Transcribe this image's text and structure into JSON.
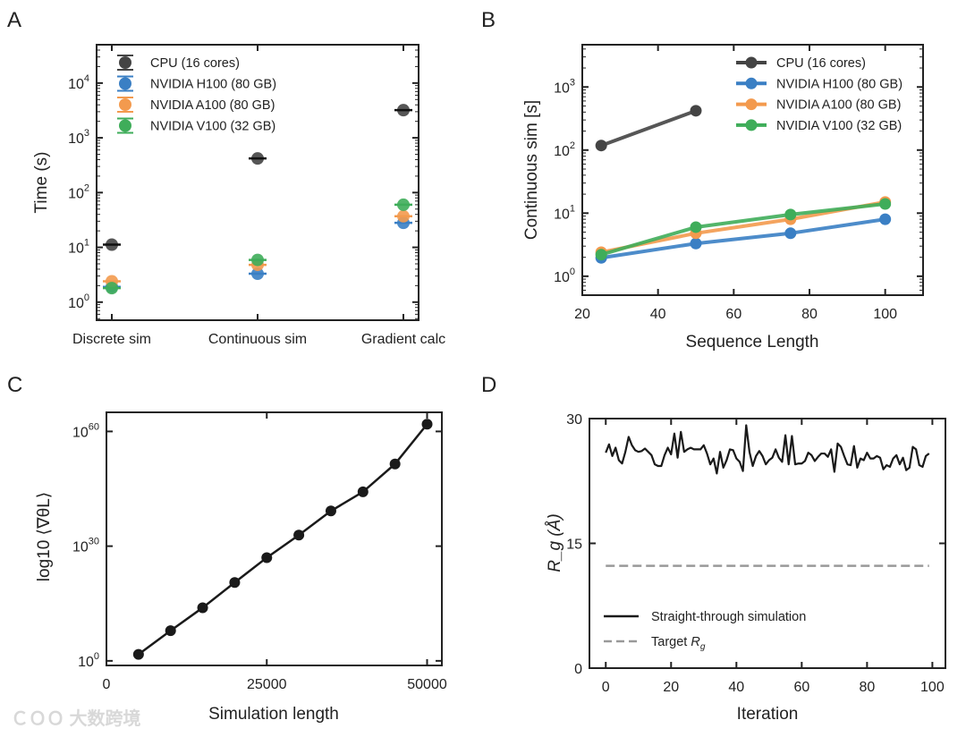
{
  "watermark": "大数跨境",
  "colors": {
    "cpu": "#444444",
    "h100": "#3a7fc4",
    "a100": "#f39a4e",
    "v100": "#3fad5a",
    "line": "#1a1a1a",
    "target": "#999999"
  },
  "chart_data": [
    {
      "panel": "A",
      "type": "scatter",
      "ylabel": "Time (s)",
      "yscale": "log",
      "ylim_log10": [
        -0.33,
        4.7
      ],
      "yticks": [
        "10^0",
        "10^1",
        "10^2",
        "10^3",
        "10^4"
      ],
      "categories": [
        "Discrete sim",
        "Continuous sim",
        "Gradient calc"
      ],
      "legend_position": "top-left",
      "series": [
        {
          "name": "CPU (16 cores)",
          "color_key": "cpu",
          "values": [
            11.2,
            420,
            3200
          ]
        },
        {
          "name": "NVIDIA H100 (80 GB)",
          "color_key": "h100",
          "values": [
            1.9,
            3.3,
            28
          ]
        },
        {
          "name": "NVIDIA A100 (80 GB)",
          "color_key": "a100",
          "values": [
            2.4,
            4.8,
            37
          ]
        },
        {
          "name": "NVIDIA V100 (32 GB)",
          "color_key": "v100",
          "values": [
            1.8,
            5.9,
            60
          ]
        }
      ]
    },
    {
      "panel": "B",
      "type": "line",
      "xlabel": "Sequence Length",
      "ylabel": "Continuous sim [s]",
      "yscale": "log",
      "xlim": [
        20,
        110
      ],
      "ylim_log10": [
        -0.3,
        3.67
      ],
      "xticks": [
        "20",
        "40",
        "60",
        "80",
        "100"
      ],
      "yticks": [
        "10^0",
        "10^1",
        "10^2",
        "10^3"
      ],
      "legend_position": "top-right",
      "series": [
        {
          "name": "CPU (16 cores)",
          "color_key": "cpu",
          "x": [
            25,
            50
          ],
          "values": [
            118,
            420
          ]
        },
        {
          "name": "NVIDIA H100 (80 GB)",
          "color_key": "h100",
          "x": [
            25,
            50,
            75,
            100
          ],
          "values": [
            1.96,
            3.3,
            4.8,
            8.0
          ]
        },
        {
          "name": "NVIDIA A100 (80 GB)",
          "color_key": "a100",
          "x": [
            25,
            50,
            75,
            100
          ],
          "values": [
            2.4,
            4.8,
            8.0,
            15
          ]
        },
        {
          "name": "NVIDIA V100 (32 GB)",
          "color_key": "v100",
          "x": [
            25,
            50,
            75,
            100
          ],
          "values": [
            2.2,
            6.0,
            9.5,
            14
          ]
        }
      ]
    },
    {
      "panel": "C",
      "type": "line",
      "xlabel": "Simulation length",
      "ylabel": "log10 ⟨∇θL⟩",
      "xlim": [
        0,
        52300
      ],
      "ylim_exponent": [
        -1.2,
        65
      ],
      "xticks": [
        "0",
        "25000",
        "50000"
      ],
      "yticks": [
        "10^0",
        "10^30",
        "10^60"
      ],
      "series": [
        {
          "name": "gradient",
          "x": [
            5000,
            10000,
            15000,
            20000,
            25000,
            30000,
            35000,
            40000,
            45000,
            50000
          ],
          "values_exponent": [
            1.7,
            7.9,
            13.9,
            20.5,
            27.0,
            32.9,
            39.2,
            44.2,
            51.5,
            61.9
          ]
        }
      ]
    },
    {
      "panel": "D",
      "type": "line",
      "xlabel": "Iteration",
      "ylabel": "R_g (Å)",
      "xlim": [
        -5,
        104
      ],
      "ylim": [
        0,
        30
      ],
      "xticks": [
        "0",
        "20",
        "40",
        "60",
        "80",
        "100"
      ],
      "yticks": [
        "0",
        "15",
        "30"
      ],
      "legend_position": "bottom-left",
      "series": [
        {
          "name": "Straight-through simulation",
          "style": "solid",
          "values": [
            25.9,
            26.9,
            25.5,
            26.5,
            25.0,
            24.6,
            26.0,
            27.8,
            26.8,
            26.2,
            26.0,
            26.1,
            26.4,
            26.0,
            25.6,
            24.5,
            24.3,
            24.3,
            25.6,
            26.5,
            25.7,
            28.2,
            25.3,
            28.4,
            26.0,
            26.3,
            26.5,
            26.3,
            26.3,
            26.3,
            26.8,
            25.8,
            24.5,
            25.2,
            23.4,
            26.0,
            24.1,
            25.0,
            26.3,
            26.2,
            25.2,
            24.8,
            23.7,
            29.2,
            26.0,
            24.3,
            25.5,
            26.1,
            25.5,
            24.5,
            25.0,
            25.3,
            26.3,
            25.3,
            24.8,
            28.0,
            24.5,
            27.9,
            24.5,
            24.6,
            24.6,
            24.9,
            25.9,
            25.6,
            24.9,
            25.4,
            25.8,
            25.8,
            25.4,
            26.3,
            23.6,
            27.0,
            26.6,
            25.5,
            24.5,
            24.4,
            26.7,
            24.1,
            25.2,
            25.0,
            25.9,
            25.2,
            25.2,
            25.5,
            25.3,
            23.9,
            24.4,
            24.2,
            25.2,
            25.6,
            24.5,
            25.3,
            23.8,
            24.1,
            26.6,
            26.3,
            24.4,
            24.2,
            25.5,
            25.8
          ]
        },
        {
          "name": "Target R_g",
          "style": "dashed",
          "value": 12.3
        }
      ]
    }
  ],
  "panel_labels": [
    "A",
    "B",
    "C",
    "D"
  ]
}
